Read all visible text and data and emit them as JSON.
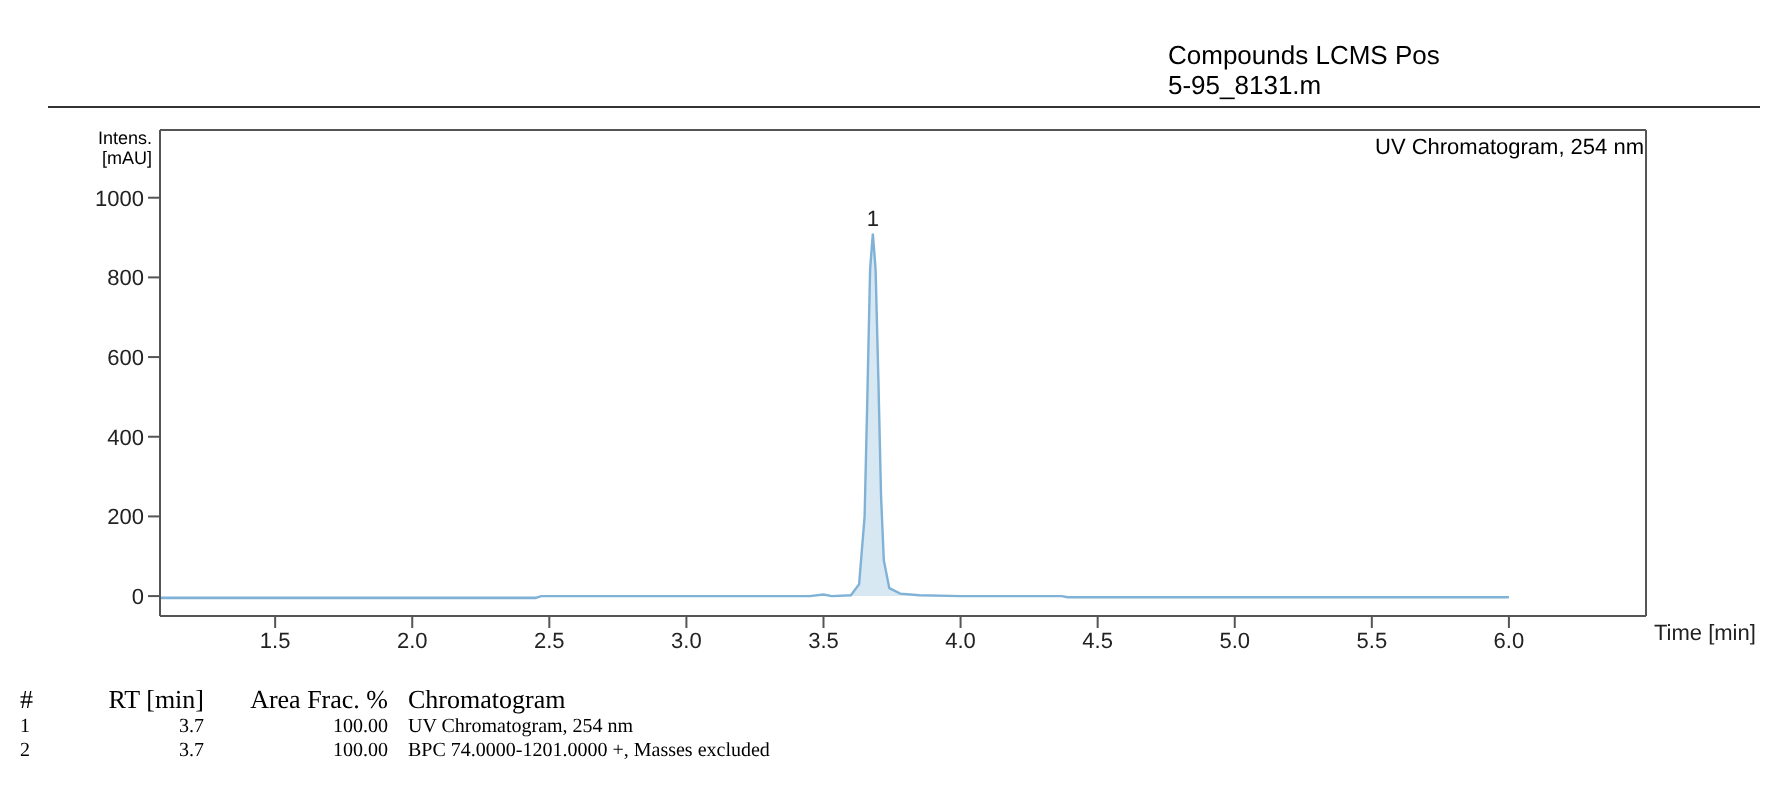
{
  "chart_data": {
    "type": "area",
    "title": "Compounds LCMS Pos",
    "subtitle": "5-95_8131.m",
    "xlabel": "Time [min]",
    "ylabel": "Intens. [mAU]",
    "series": [
      {
        "color": "#7fb2d6",
        "x": [
          1.08,
          1.5,
          2.0,
          2.45,
          2.47,
          3.0,
          3.45,
          3.5,
          3.53,
          3.6,
          3.63,
          3.65,
          3.66,
          3.67,
          3.68,
          3.69,
          3.7,
          3.71,
          3.72,
          3.74,
          3.78,
          3.85,
          4.0,
          4.37,
          4.39,
          5.0,
          5.5,
          6.0
        ],
        "values": [
          -5,
          -5,
          -5,
          -5,
          0,
          0,
          0,
          4,
          0,
          2,
          30,
          200,
          500,
          820,
          910,
          820,
          550,
          250,
          90,
          20,
          6,
          2,
          0,
          0,
          -3,
          -3,
          -3,
          -3
        ]
      }
    ],
    "xlim": [
      1.08,
      6.5
    ],
    "xticks": [
      1.5,
      {
        "value": 2,
        "label": "2.0"
      },
      2.5,
      {
        "value": 3,
        "label": "3.0"
      },
      3.5,
      {
        "value": 4,
        "label": "4.0"
      },
      4.5,
      {
        "value": 5,
        "label": "5.0"
      },
      5.5,
      {
        "value": 6,
        "label": "6.0"
      }
    ],
    "ylim": [
      -50,
      1170
    ],
    "yticks": [
      0,
      200,
      400,
      600,
      800,
      1000
    ],
    "annotations": [
      "UV Chromatogram, 254 nm",
      {
        "text": "1",
        "x": 3.68,
        "y": 910
      },
      "#",
      "RT [min]",
      "Area Frac. %",
      "Chromatogram",
      "1",
      "3.7",
      "100.00",
      "UV Chromatogram, 254 nm",
      "2",
      "3.7",
      "100.00",
      "BPC 74.0000-1201.0000 +, Masses excluded"
    ]
  }
}
